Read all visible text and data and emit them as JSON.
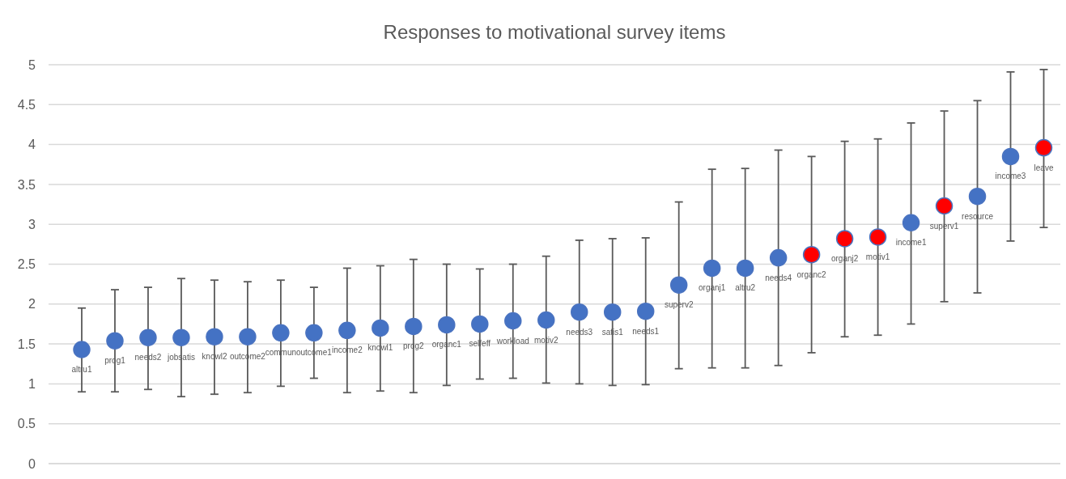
{
  "chart_data": {
    "type": "scatter",
    "title": "Responses to motivational survey items",
    "categories": [
      "altru1",
      "prog1",
      "needs2",
      "jobsatis",
      "knowl2",
      "outcome2",
      "commun",
      "outcome1",
      "income2",
      "knowl1",
      "prog2",
      "organc1",
      "selfeff",
      "workload",
      "motiv2",
      "needs3",
      "satis1",
      "needs1",
      "superv2",
      "organj1",
      "altru2",
      "needs4",
      "organc2",
      "organj2",
      "motiv1",
      "income1",
      "superv1",
      "resource",
      "income3",
      "leave"
    ],
    "values": [
      1.43,
      1.54,
      1.58,
      1.58,
      1.59,
      1.59,
      1.64,
      1.64,
      1.67,
      1.7,
      1.72,
      1.74,
      1.75,
      1.79,
      1.8,
      1.9,
      1.9,
      1.91,
      2.24,
      2.45,
      2.45,
      2.58,
      2.62,
      2.82,
      2.84,
      3.02,
      3.23,
      3.35,
      3.85,
      3.96
    ],
    "colors": [
      "#4472c4",
      "#4472c4",
      "#4472c4",
      "#4472c4",
      "#4472c4",
      "#4472c4",
      "#4472c4",
      "#4472c4",
      "#4472c4",
      "#4472c4",
      "#4472c4",
      "#4472c4",
      "#4472c4",
      "#4472c4",
      "#4472c4",
      "#4472c4",
      "#4472c4",
      "#4472c4",
      "#4472c4",
      "#4472c4",
      "#4472c4",
      "#4472c4",
      "#ff0000",
      "#ff0000",
      "#ff0000",
      "#4472c4",
      "#ff0000",
      "#4472c4",
      "#4472c4",
      "#ff0000"
    ],
    "errors": [
      [
        0.9,
        1.95
      ],
      [
        0.9,
        2.18
      ],
      [
        0.93,
        2.21
      ],
      [
        0.84,
        2.32
      ],
      [
        0.87,
        2.3
      ],
      [
        0.89,
        2.28
      ],
      [
        0.97,
        2.3
      ],
      [
        1.07,
        2.21
      ],
      [
        0.89,
        2.45
      ],
      [
        0.91,
        2.48
      ],
      [
        0.89,
        2.56
      ],
      [
        0.98,
        2.5
      ],
      [
        1.06,
        2.44
      ],
      [
        1.07,
        2.5
      ],
      [
        1.01,
        2.6
      ],
      [
        1.0,
        2.8
      ],
      [
        0.98,
        2.82
      ],
      [
        0.99,
        2.83
      ],
      [
        1.19,
        3.28
      ],
      [
        1.2,
        3.69
      ],
      [
        1.2,
        3.7
      ],
      [
        1.23,
        3.93
      ],
      [
        1.39,
        3.85
      ],
      [
        1.59,
        4.04
      ],
      [
        1.61,
        4.07
      ],
      [
        1.75,
        4.27
      ],
      [
        2.03,
        4.42
      ],
      [
        2.14,
        4.55
      ],
      [
        2.79,
        4.91
      ],
      [
        2.96,
        4.94
      ]
    ],
    "ylim": [
      0,
      5
    ],
    "yticks": [
      0,
      0.5,
      1,
      1.5,
      2,
      2.5,
      3,
      3.5,
      4,
      4.5,
      5
    ],
    "grid": "y",
    "marker": "circle"
  }
}
